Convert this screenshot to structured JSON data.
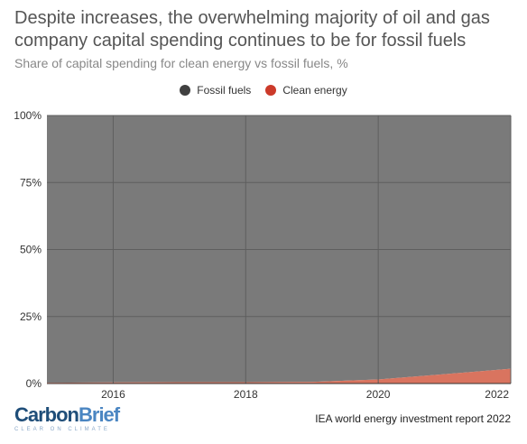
{
  "header": {
    "title": "Despite increases, the overwhelming majority of oil and gas company capital spending continues to be for fossil fuels",
    "subtitle": "Share of capital spending for clean energy vs fossil fuels, %"
  },
  "footer": {
    "source": "IEA world energy investment report 2022",
    "logo_text_part1": "Carbon",
    "logo_text_part2": "Brief",
    "logo_tagline": "CLEAR ON CLIMATE"
  },
  "colors": {
    "fossil": "#7a7a7a",
    "fossil_legend": "#404040",
    "clean": "#d9745f",
    "clean_legend": "#cc3a2a"
  },
  "chart_data": {
    "type": "area",
    "stacked": true,
    "x": [
      2015,
      2016,
      2017,
      2018,
      2019,
      2020,
      2021,
      2022
    ],
    "series": [
      {
        "name": "Clean energy",
        "values": [
          0.3,
          0.4,
          0.5,
          0.5,
          0.6,
          1.5,
          3.5,
          5.5
        ]
      },
      {
        "name": "Fossil fuels",
        "values": [
          99.7,
          99.6,
          99.5,
          99.5,
          99.4,
          98.5,
          96.5,
          94.5
        ]
      }
    ],
    "x_ticks": [
      "2016",
      "2018",
      "2020",
      "2022"
    ],
    "x_tick_values": [
      2016,
      2018,
      2020,
      2022
    ],
    "y_ticks": [
      "0%",
      "25%",
      "50%",
      "75%",
      "100%"
    ],
    "y_tick_values": [
      0,
      25,
      50,
      75,
      100
    ],
    "xlim": [
      2015,
      2022
    ],
    "ylim": [
      0,
      100
    ],
    "legend": [
      "Fossil fuels",
      "Clean energy"
    ],
    "legend_position": "top-center",
    "grid": true
  }
}
